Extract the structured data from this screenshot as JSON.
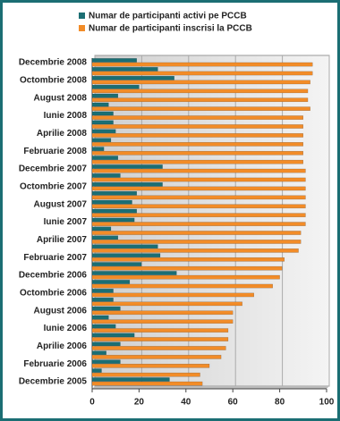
{
  "chart_data": {
    "type": "hbar",
    "categories": [
      "Decembrie 2005",
      null,
      "Februarie 2006",
      null,
      "Aprilie 2006",
      null,
      "Iunie 2006",
      null,
      "August 2006",
      null,
      "Octombrie 2006",
      null,
      "Decembrie 2006",
      null,
      "Februarie 2007",
      null,
      "Aprilie 2007",
      null,
      "Iunie 2007",
      null,
      "August 2007",
      null,
      "Octombrie 2007",
      null,
      "Decembrie 2007",
      null,
      "Februarie 2008",
      null,
      "Aprilie 2008",
      null,
      "Iunie 2008",
      null,
      "August 2008",
      null,
      "Octombrie 2008",
      null,
      "Decembrie 2008"
    ],
    "series": [
      {
        "name": "Numar de participanti activi pe PCCB",
        "color": "#1b6e73",
        "values": [
          33,
          4,
          12,
          6,
          12,
          18,
          10,
          7,
          12,
          9,
          9,
          16,
          36,
          21,
          29,
          28,
          11,
          8,
          18,
          19,
          17,
          19,
          30,
          12,
          30,
          11,
          5,
          8,
          10,
          9,
          9,
          7,
          11,
          20,
          35,
          28,
          19
        ]
      },
      {
        "name": "Numar de participanti inscrisi la PCCB",
        "color": "#f28c28",
        "values": [
          47,
          46,
          50,
          55,
          57,
          58,
          58,
          60,
          60,
          64,
          69,
          77,
          80,
          81,
          82,
          88,
          89,
          89,
          91,
          91,
          91,
          91,
          91,
          91,
          91,
          90,
          90,
          90,
          90,
          90,
          90,
          93,
          92,
          92,
          93,
          94,
          94
        ]
      }
    ],
    "xlim": [
      0,
      100
    ],
    "xticks": [
      0,
      20,
      40,
      60,
      80,
      100
    ],
    "grid": true,
    "legend": "top"
  }
}
